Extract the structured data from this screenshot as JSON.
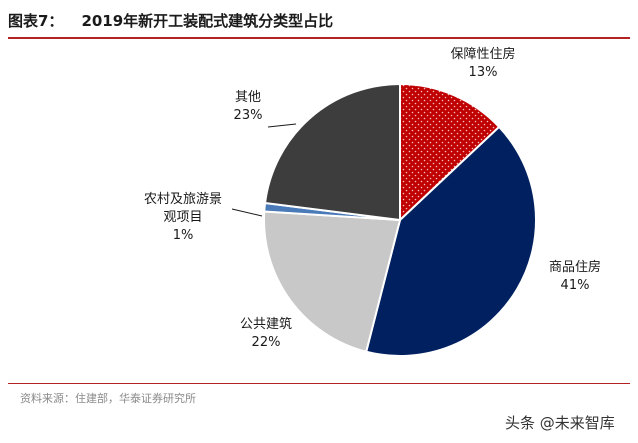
{
  "header": {
    "label": "图表7：",
    "title": "2019年新开工装配式建筑分类型占比"
  },
  "chart_data": {
    "type": "pie",
    "categories": [
      "保障性住房",
      "商品住房",
      "公共建筑",
      "农村及旅游景观项目",
      "其他"
    ],
    "values": [
      13,
      41,
      22,
      1,
      23
    ],
    "value_labels": [
      "13%",
      "41%",
      "22%",
      "1%",
      "23%"
    ],
    "label_lines": [
      [
        "保障性住房"
      ],
      [
        "商品住房"
      ],
      [
        "公共建筑"
      ],
      [
        "农村及旅游景",
        "观项目"
      ],
      [
        "其他"
      ]
    ],
    "colors": [
      "#c00000",
      "#002060",
      "#c8c8c8",
      "#4a7ab8",
      "#3d3d3d"
    ],
    "unit": "%"
  },
  "source": "资料来源：住建部，华泰证券研究所",
  "watermark": "头条 @未来智库"
}
